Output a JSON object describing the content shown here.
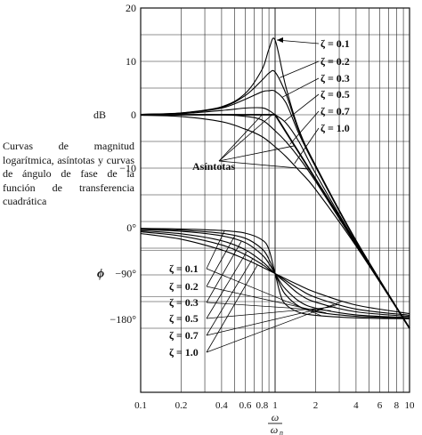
{
  "caption": "Curvas de magnitud logarítmica, asíntotas y curvas de ángulo de fase de la función de transferencia cuadrática",
  "chart_data": {
    "type": "line",
    "x_scale": "log",
    "x_ticks": [
      0.1,
      0.2,
      0.4,
      0.6,
      0.8,
      1,
      2,
      4,
      6,
      8,
      10
    ],
    "x_tick_labels": [
      "0.1",
      "0.2",
      "0.4",
      "0.6",
      "0.8",
      "1",
      "2",
      "4",
      "6",
      "8",
      "10"
    ],
    "xlabel_num": "ω",
    "xlabel_den": "ω",
    "xlabel_den_sub": "n",
    "grid": true,
    "magnitude": {
      "ylabel": "dB",
      "ylim": [
        -40,
        20
      ],
      "y_ticks": [
        20,
        10,
        0,
        -10
      ],
      "y_tick_labels": [
        "20",
        "10",
        "0",
        "−10"
      ],
      "asymptote_label": "Asíntotas",
      "asymptote": {
        "x": [
          0.1,
          1,
          10
        ],
        "y": [
          0,
          0,
          -40
        ]
      },
      "series": [
        {
          "name": "ζ = 0.1",
          "zeta": 0.1,
          "x": [
            0.1,
            0.2,
            0.4,
            0.6,
            0.8,
            0.9,
            1,
            1.2,
            1.5,
            2,
            4,
            10
          ],
          "y": [
            0.09,
            0.35,
            1.5,
            4,
            8.5,
            12.3,
            14.0,
            5.3,
            -2.7,
            -9.5,
            -23.5,
            -40
          ]
        },
        {
          "name": "ζ = 0.2",
          "zeta": 0.2,
          "x": [
            0.1,
            0.2,
            0.4,
            0.6,
            0.8,
            0.9,
            1,
            1.2,
            1.5,
            2,
            4,
            10
          ],
          "y": [
            0.08,
            0.33,
            1.4,
            3.6,
            6.5,
            7.8,
            8.0,
            4.0,
            -3.0,
            -9.5,
            -23.6,
            -40
          ]
        },
        {
          "name": "ζ = 0.3",
          "zeta": 0.3,
          "x": [
            0.1,
            0.2,
            0.4,
            0.6,
            0.8,
            0.9,
            1,
            1.2,
            1.5,
            2,
            4,
            10
          ],
          "y": [
            0.08,
            0.3,
            1.25,
            2.9,
            4.3,
            4.5,
            4.4,
            2.3,
            -3.5,
            -9.8,
            -23.7,
            -40
          ]
        },
        {
          "name": "ζ = 0.5",
          "zeta": 0.5,
          "x": [
            0.1,
            0.2,
            0.4,
            0.6,
            0.8,
            0.9,
            1,
            1.2,
            1.5,
            2,
            4,
            10
          ],
          "y": [
            0.05,
            0.2,
            0.8,
            1.25,
            1.3,
            0.8,
            0.0,
            -1.5,
            -5.0,
            -11.0,
            -24.0,
            -40
          ]
        },
        {
          "name": "ζ = 0.7",
          "zeta": 0.7,
          "x": [
            0.1,
            0.2,
            0.4,
            0.6,
            0.8,
            1,
            1.2,
            1.5,
            2,
            4,
            10
          ],
          "y": [
            0.0,
            0.0,
            0.0,
            -0.3,
            -1.0,
            -3.0,
            -5.0,
            -8.0,
            -12.5,
            -24.4,
            -40
          ]
        },
        {
          "name": "ζ = 1.0",
          "zeta": 1.0,
          "x": [
            0.1,
            0.2,
            0.4,
            0.6,
            0.8,
            1,
            1.2,
            1.5,
            2,
            4,
            10
          ],
          "y": [
            -0.1,
            -0.35,
            -1.3,
            -2.7,
            -4.1,
            -6.0,
            -7.8,
            -10.4,
            -14.0,
            -24.6,
            -40
          ]
        }
      ]
    },
    "phase": {
      "ylabel": "ϕ",
      "ylim": [
        -180,
        0
      ],
      "y_ticks": [
        0,
        -90,
        -180
      ],
      "y_tick_labels": [
        "0°",
        "−90°",
        "−180°"
      ],
      "series": [
        {
          "name": "ζ = 0.1",
          "zeta": 0.1,
          "x": [
            0.1,
            0.2,
            0.4,
            0.6,
            0.8,
            0.9,
            1,
            1.1,
            1.2,
            1.5,
            2,
            4,
            10
          ],
          "y": [
            -1.2,
            -2.4,
            -5.4,
            -10.6,
            -24,
            -43,
            -90,
            -133,
            -151,
            -166,
            -172,
            -177,
            -179
          ]
        },
        {
          "name": "ζ = 0.2",
          "zeta": 0.2,
          "x": [
            0.1,
            0.2,
            0.4,
            0.6,
            0.8,
            0.9,
            1,
            1.1,
            1.2,
            1.5,
            2,
            4,
            10
          ],
          "y": [
            -2.3,
            -4.8,
            -10.8,
            -20.6,
            -41.6,
            -62,
            -90,
            -115,
            -132,
            -154,
            -165,
            -174,
            -178
          ]
        },
        {
          "name": "ζ = 0.3",
          "zeta": 0.3,
          "x": [
            0.1,
            0.2,
            0.4,
            0.6,
            0.8,
            0.9,
            1,
            1.1,
            1.2,
            1.5,
            2,
            4,
            10
          ],
          "y": [
            -3.5,
            -7.1,
            -15.9,
            -29.4,
            -53.1,
            -70.5,
            -90,
            -108,
            -121,
            -144,
            -158,
            -171,
            -176.5
          ]
        },
        {
          "name": "ζ = 0.5",
          "zeta": 0.5,
          "x": [
            0.1,
            0.2,
            0.4,
            0.6,
            0.8,
            0.9,
            1,
            1.1,
            1.2,
            1.5,
            2,
            4,
            10
          ],
          "y": [
            -5.8,
            -11.8,
            -25.5,
            -43.2,
            -66,
            -78.7,
            -90,
            -100,
            -108,
            -129.8,
            -146.3,
            -165.1,
            -174.2
          ]
        },
        {
          "name": "ζ = 0.7",
          "zeta": 0.7,
          "x": [
            0.1,
            0.2,
            0.4,
            0.6,
            0.8,
            0.9,
            1,
            1.1,
            1.2,
            1.5,
            2,
            4,
            10
          ],
          "y": [
            -8.0,
            -16.3,
            -33.7,
            -52.7,
            -72,
            -81.6,
            -90,
            -97.3,
            -104,
            -120,
            -137,
            -159.7,
            -171.9
          ]
        },
        {
          "name": "ζ = 1.0",
          "zeta": 1.0,
          "x": [
            0.1,
            0.2,
            0.4,
            0.6,
            0.8,
            0.9,
            1,
            1.1,
            1.2,
            1.5,
            2,
            4,
            10
          ],
          "y": [
            -11.4,
            -22.6,
            -43.6,
            -61.9,
            -77.3,
            -83.9,
            -90,
            -95.5,
            -100.4,
            -112.6,
            -126.9,
            -151.9,
            -168.6
          ]
        }
      ]
    }
  }
}
